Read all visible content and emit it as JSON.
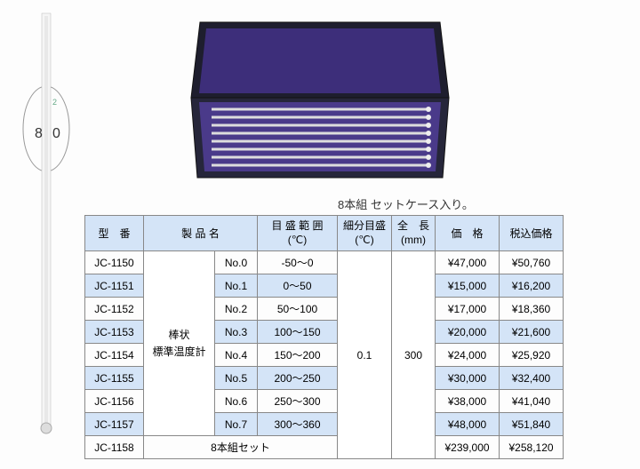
{
  "images": {
    "caption": "8本組 セットケース入り。"
  },
  "table": {
    "headers": {
      "model": "型　番",
      "name": "製 品 名",
      "range_l1": "目 盛 範 囲",
      "range_l2": "(℃)",
      "scale_l1": "細分目盛",
      "scale_l2": "(℃)",
      "length_l1": "全　長",
      "length_l2": "(mm)",
      "price": "価　格",
      "taxprice": "税込価格"
    },
    "product_name_l1": "棒状",
    "product_name_l2": "標準温度計",
    "scale_value": "0.1",
    "length_value": "300",
    "set_label": "8本組セット",
    "rows": [
      {
        "model": "JC-1150",
        "no": "No.0",
        "range": "-50～0",
        "price": "¥47,000",
        "taxprice": "¥50,760",
        "alt": false
      },
      {
        "model": "JC-1151",
        "no": "No.1",
        "range": "0～50",
        "price": "¥15,000",
        "taxprice": "¥16,200",
        "alt": true
      },
      {
        "model": "JC-1152",
        "no": "No.2",
        "range": "50～100",
        "price": "¥17,000",
        "taxprice": "¥18,360",
        "alt": false
      },
      {
        "model": "JC-1153",
        "no": "No.3",
        "range": "100～150",
        "price": "¥20,000",
        "taxprice": "¥21,600",
        "alt": true
      },
      {
        "model": "JC-1154",
        "no": "No.4",
        "range": "150～200",
        "price": "¥24,000",
        "taxprice": "¥25,920",
        "alt": false
      },
      {
        "model": "JC-1155",
        "no": "No.5",
        "range": "200～250",
        "price": "¥30,000",
        "taxprice": "¥32,400",
        "alt": true
      },
      {
        "model": "JC-1156",
        "no": "No.6",
        "range": "250～300",
        "price": "¥38,000",
        "taxprice": "¥41,040",
        "alt": false
      },
      {
        "model": "JC-1157",
        "no": "No.7",
        "range": "300～360",
        "price": "¥48,000",
        "taxprice": "¥51,840",
        "alt": true
      }
    ],
    "set_row": {
      "model": "JC-1158",
      "price": "¥239,000",
      "taxprice": "¥258,120",
      "alt": false
    }
  },
  "colors": {
    "header_bg": "#d4e4f7",
    "border": "#888888",
    "case_outer": "#2a2a3a",
    "case_inner": "#3a2a6a"
  }
}
